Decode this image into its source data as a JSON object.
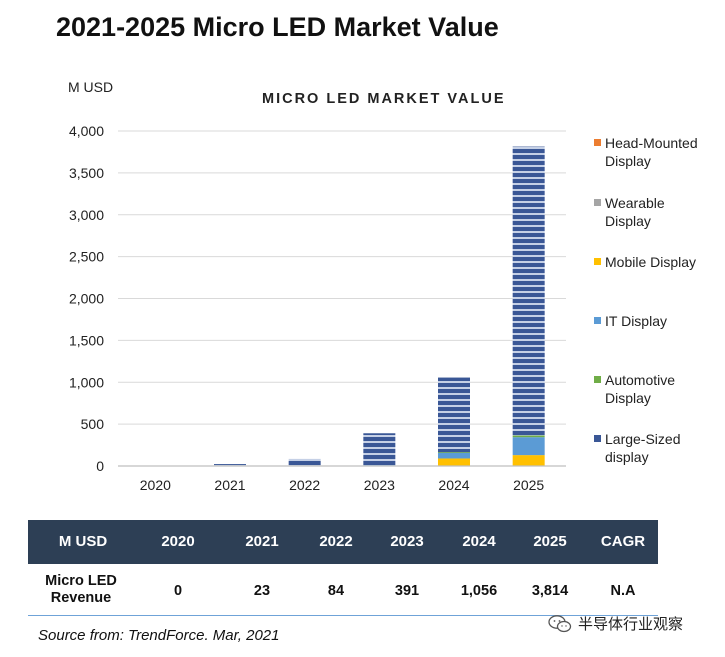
{
  "title": "2021-2025 Micro LED Market Value",
  "unit_label": "M USD",
  "chart_title": "MICRO LED MARKET VALUE",
  "colors": {
    "head_mounted": "#ec7d31",
    "wearable": "#a5a5a5",
    "mobile": "#ffc000",
    "it": "#5b9bd5",
    "automotive": "#70ad47",
    "large": "#3a5796",
    "table_header": "#2d3f55"
  },
  "chart_data": {
    "type": "bar",
    "stacked": true,
    "title": "MICRO LED MARKET VALUE",
    "ylabel": "M USD",
    "xlabel": "",
    "ylim": [
      0,
      4000
    ],
    "yticks": [
      0,
      500,
      1000,
      1500,
      2000,
      2500,
      3000,
      3500,
      4000
    ],
    "ytick_labels": [
      "0",
      "500",
      "1,000",
      "1,500",
      "2,000",
      "2,500",
      "3,000",
      "3,500",
      "4,000"
    ],
    "categories": [
      "2020",
      "2021",
      "2022",
      "2023",
      "2024",
      "2025"
    ],
    "series": [
      {
        "name": "Large-Sized display",
        "color": "#3a5796",
        "values": [
          0,
          23,
          84,
          381,
          890,
          3450
        ]
      },
      {
        "name": "Automotive Display",
        "color": "#70ad47",
        "values": [
          0,
          0,
          0,
          0,
          5,
          20
        ]
      },
      {
        "name": "IT Display",
        "color": "#5b9bd5",
        "values": [
          0,
          0,
          0,
          5,
          71,
          214
        ]
      },
      {
        "name": "Mobile Display",
        "color": "#ffc000",
        "values": [
          0,
          0,
          0,
          5,
          90,
          130
        ]
      },
      {
        "name": "Wearable Display",
        "color": "#a5a5a5",
        "values": [
          0,
          0,
          0,
          0,
          0,
          0
        ]
      },
      {
        "name": "Head-Mounted Display",
        "color": "#ec7d31",
        "values": [
          0,
          0,
          0,
          0,
          0,
          0
        ]
      }
    ],
    "legend": [
      {
        "key": "head_mounted",
        "line1": "Head-Mounted",
        "line2": "Display"
      },
      {
        "key": "wearable",
        "line1": "Wearable",
        "line2": "Display"
      },
      {
        "key": "mobile",
        "line1": "Mobile Display",
        "line2": ""
      },
      {
        "key": "it",
        "line1": "IT Display",
        "line2": ""
      },
      {
        "key": "automotive",
        "line1": "Automotive",
        "line2": "Display"
      },
      {
        "key": "large",
        "line1": "Large-Sized",
        "line2": "display"
      }
    ],
    "legend_position": "right"
  },
  "table": {
    "headers": [
      "M USD",
      "2020",
      "2021",
      "2022",
      "2023",
      "2024",
      "2025",
      "CAGR"
    ],
    "row_label_line1": "Micro LED",
    "row_label_line2": "Revenue",
    "values": [
      "0",
      "23",
      "84",
      "391",
      "1,056",
      "3,814",
      "N.A"
    ]
  },
  "source": "Source from: TrendForce. Mar, 2021",
  "watermark_text": "半导体行业观察"
}
